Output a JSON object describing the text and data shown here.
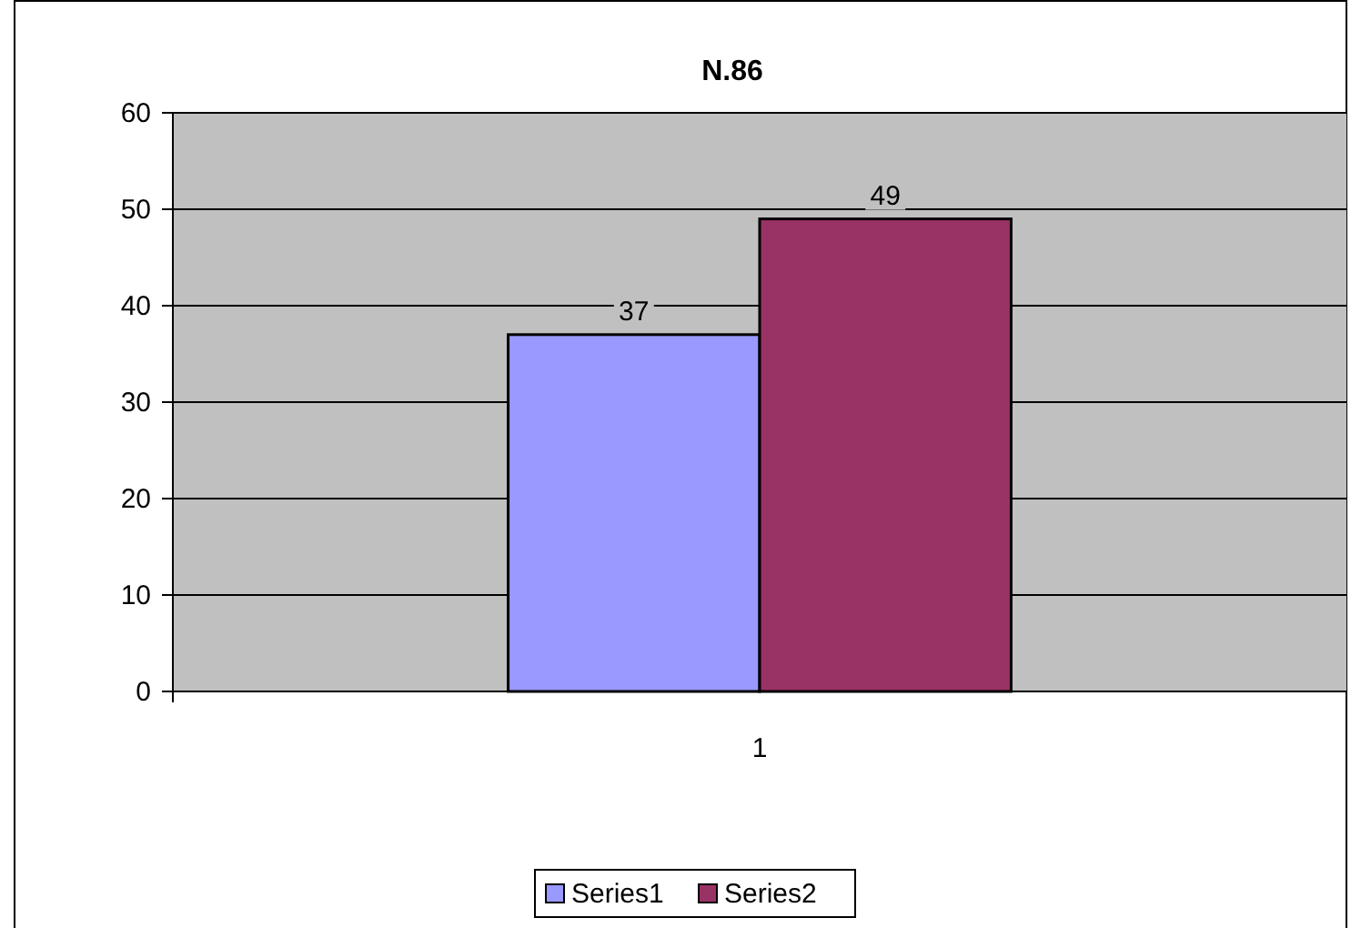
{
  "chart_data": {
    "type": "bar",
    "title": "N.86",
    "categories": [
      "1"
    ],
    "series": [
      {
        "name": "Series1",
        "color": "#9999ff",
        "values": [
          37
        ]
      },
      {
        "name": "Series2",
        "color": "#993366",
        "values": [
          49
        ]
      }
    ],
    "ylim": [
      0,
      60
    ],
    "yticks": [
      0,
      10,
      20,
      30,
      40,
      50,
      60
    ],
    "grid": "y",
    "legend": "bottom",
    "data_labels": true
  }
}
